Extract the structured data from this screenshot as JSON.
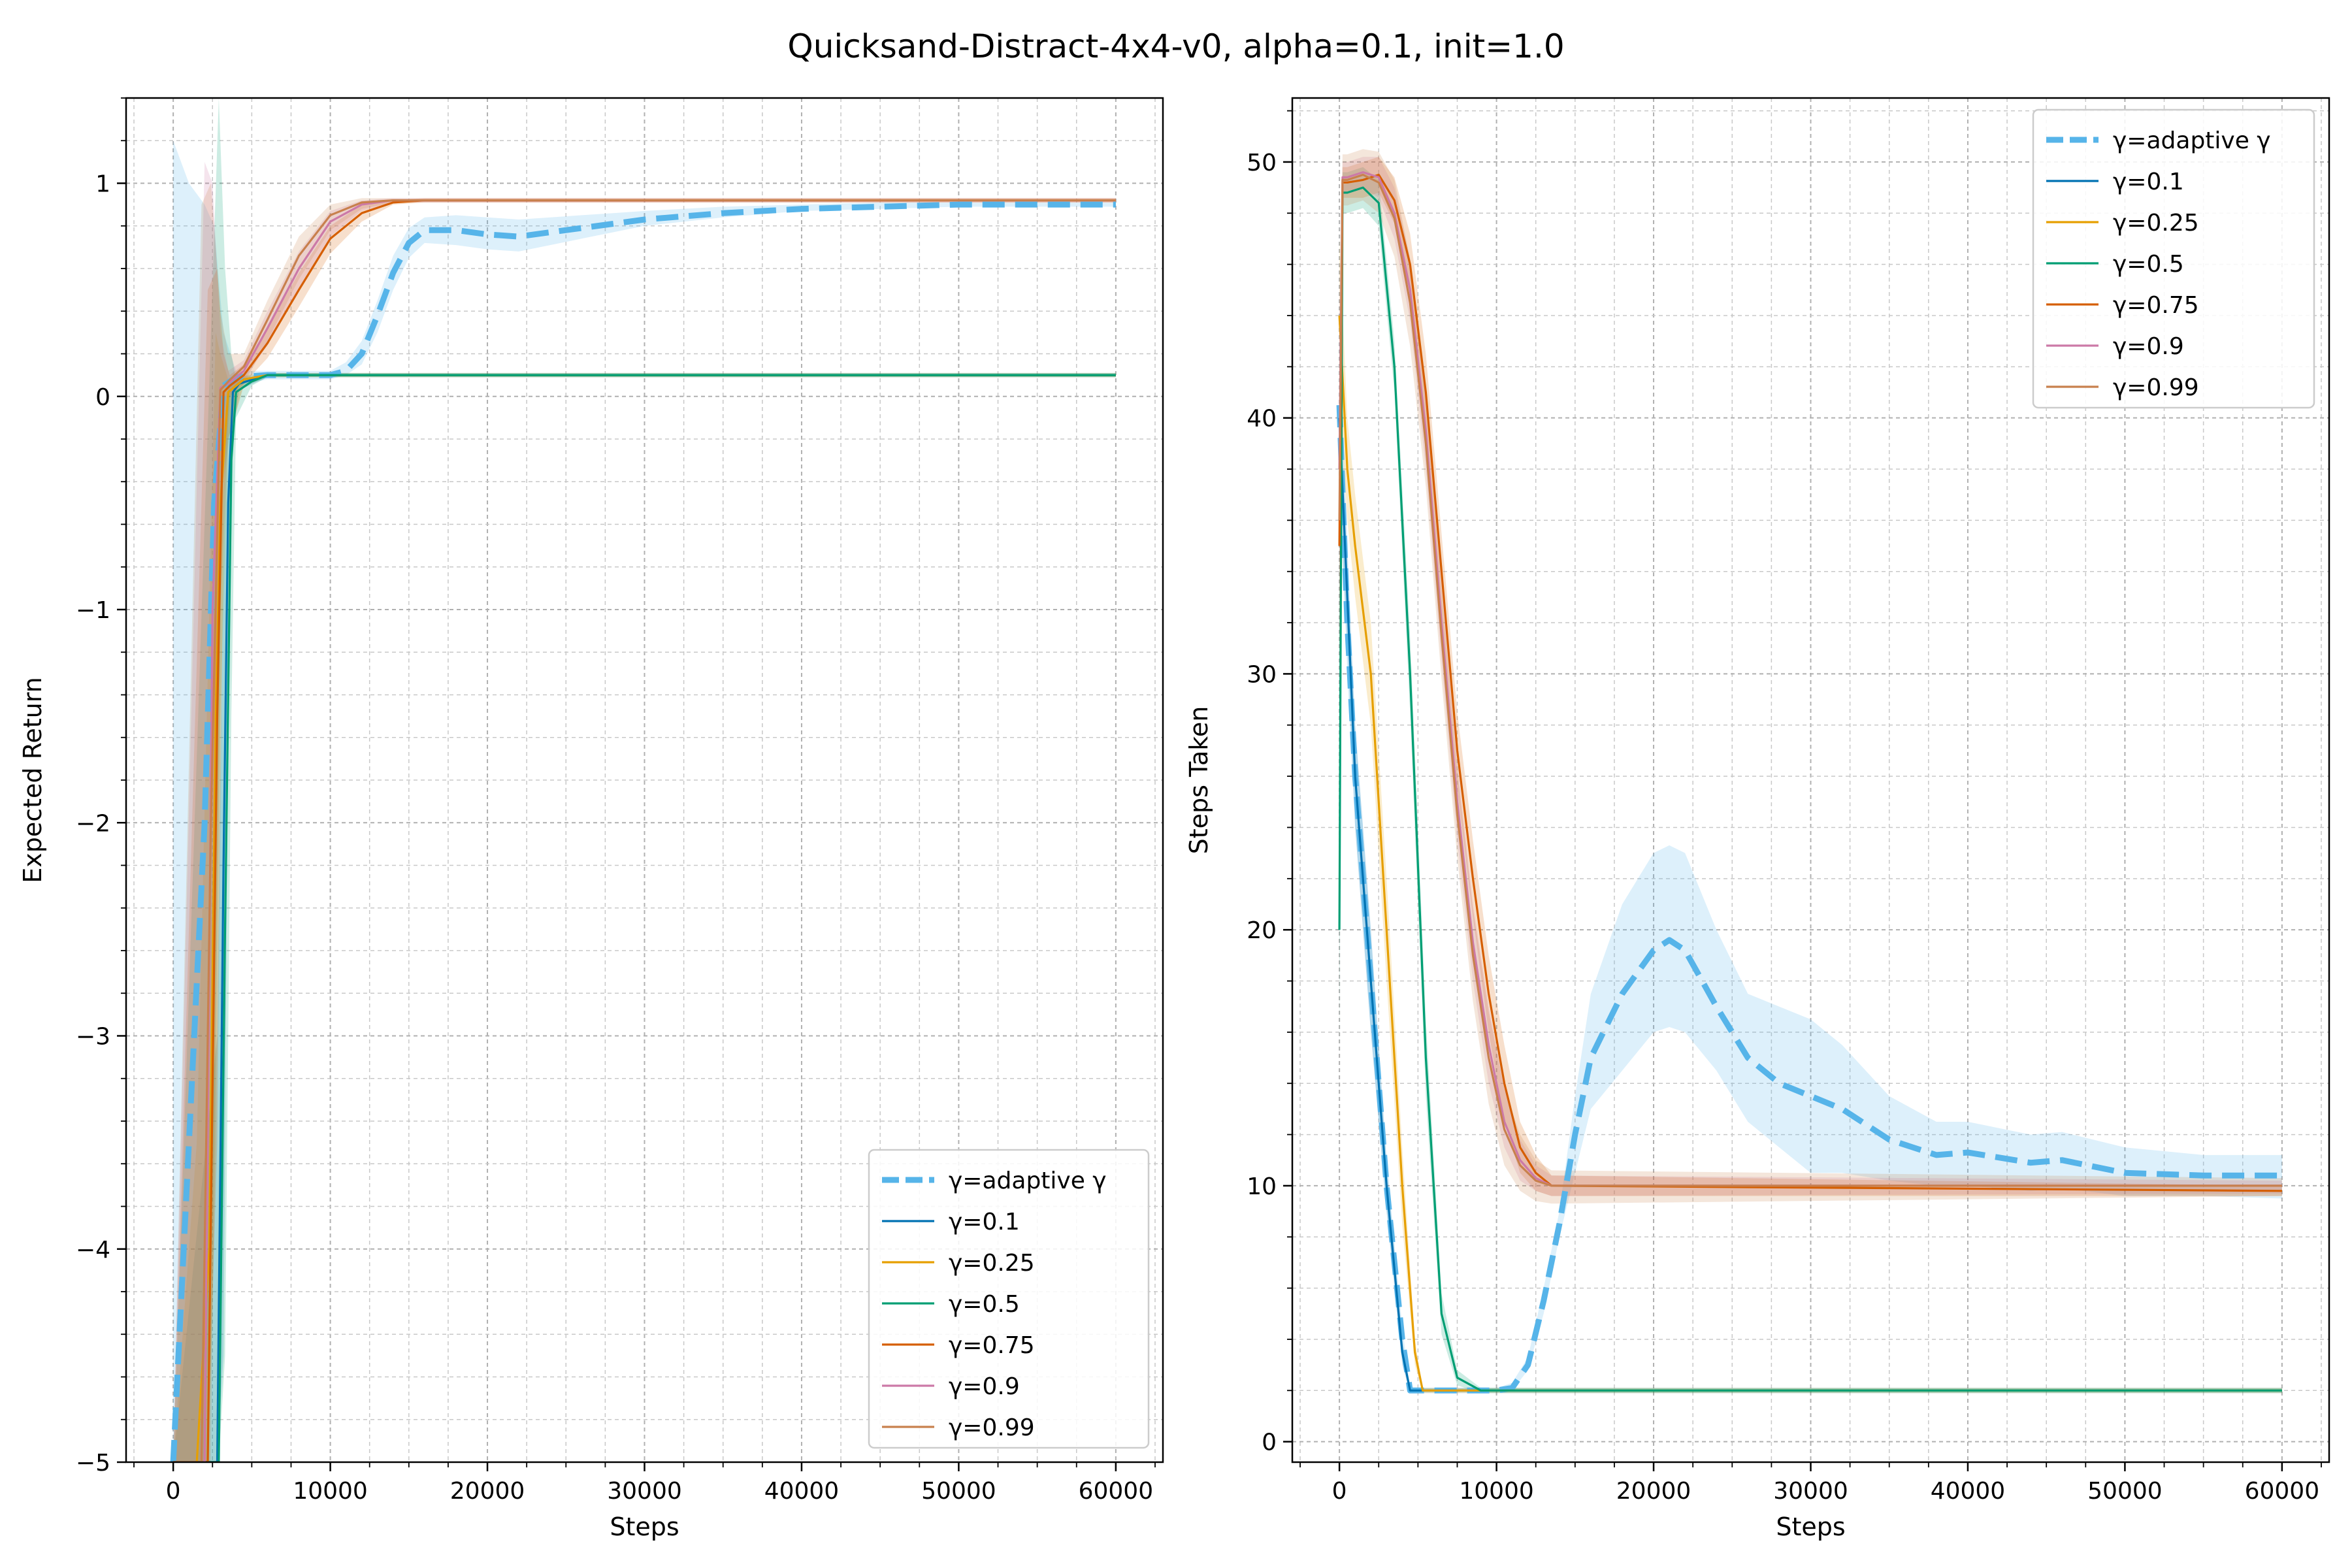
{
  "figure_title": "Quicksand-Distract-4x4-v0, alpha=0.1, init=1.0",
  "colors": {
    "adaptive": "#56b4e9",
    "g01": "#0072b2",
    "g025": "#e69f00",
    "g05": "#009e73",
    "g075": "#d55e00",
    "g09": "#cc79a7",
    "g099": "#c8804d"
  },
  "chart_data": [
    {
      "type": "line",
      "title": "",
      "xlabel": "Steps",
      "ylabel": "Expected Return",
      "xlim": [
        -3000,
        63000
      ],
      "ylim": [
        -5,
        1.4
      ],
      "xticks": [
        0,
        10000,
        20000,
        30000,
        40000,
        50000,
        60000
      ],
      "xtick_labels": [
        "0",
        "10000",
        "20000",
        "30000",
        "40000",
        "50000",
        "60000"
      ],
      "yticks": [
        -5,
        -4,
        -3,
        -2,
        -1,
        0,
        1
      ],
      "ytick_labels": [
        "−5",
        "−4",
        "−3",
        "−2",
        "−1",
        "0",
        "1"
      ],
      "grid": true,
      "legend": "lower-right",
      "series": [
        {
          "name": "γ=adaptive γ",
          "color_key": "adaptive",
          "style": "dashed",
          "x": [
            0,
            1000,
            2000,
            2600,
            3200,
            4000,
            6000,
            8000,
            10000,
            11000,
            12000,
            13000,
            14000,
            15000,
            16000,
            18000,
            20000,
            22000,
            24000,
            26000,
            28000,
            30000,
            35000,
            40000,
            45000,
            50000,
            55000,
            60000
          ],
          "y": [
            -5,
            -3.5,
            -2.0,
            -0.5,
            0.05,
            0.09,
            0.1,
            0.1,
            0.1,
            0.12,
            0.2,
            0.38,
            0.58,
            0.72,
            0.78,
            0.78,
            0.76,
            0.75,
            0.77,
            0.79,
            0.81,
            0.83,
            0.86,
            0.88,
            0.89,
            0.9,
            0.9,
            0.9
          ],
          "band_lo": [
            -5,
            -5,
            -5,
            -3.5,
            -0.4,
            0.05,
            0.08,
            0.08,
            0.08,
            0.1,
            0.15,
            0.3,
            0.5,
            0.65,
            0.72,
            0.71,
            0.69,
            0.68,
            0.71,
            0.74,
            0.77,
            0.8,
            0.84,
            0.87,
            0.88,
            0.89,
            0.89,
            0.89
          ],
          "band_hi": [
            1.2,
            1.0,
            0.9,
            0.8,
            0.3,
            0.12,
            0.12,
            0.12,
            0.12,
            0.16,
            0.26,
            0.45,
            0.66,
            0.79,
            0.84,
            0.85,
            0.84,
            0.83,
            0.84,
            0.85,
            0.86,
            0.87,
            0.89,
            0.9,
            0.91,
            0.91,
            0.91,
            0.91
          ]
        },
        {
          "name": "γ=0.1",
          "color_key": "g01",
          "style": "solid",
          "x": [
            0,
            2800,
            3200,
            3500,
            3800,
            4200,
            6000,
            60000
          ],
          "y": [
            -5,
            -5,
            -2.2,
            -0.5,
            0.02,
            0.06,
            0.1,
            0.1
          ],
          "band_lo": [
            -5,
            -5,
            -4.5,
            -1.5,
            -0.2,
            0.03,
            0.09,
            0.09
          ],
          "band_hi": [
            -5,
            -3.0,
            -0.5,
            0.05,
            0.08,
            0.09,
            0.11,
            0.11
          ]
        },
        {
          "name": "γ=0.25",
          "color_key": "g025",
          "style": "solid",
          "x": [
            0,
            1500,
            2300,
            2700,
            3000,
            3500,
            4500,
            6000,
            60000
          ],
          "y": [
            -5,
            -5,
            -4.0,
            -1.5,
            -0.5,
            0.02,
            0.08,
            0.1,
            0.1
          ],
          "band_lo": [
            -5,
            -5,
            -5,
            -3.5,
            -1.5,
            -0.2,
            0.05,
            0.09,
            0.09
          ],
          "band_hi": [
            -5,
            -3.5,
            -1.0,
            0.3,
            0.2,
            0.08,
            0.1,
            0.11,
            0.11
          ]
        },
        {
          "name": "γ=0.5",
          "color_key": "g05",
          "style": "solid",
          "x": [
            0,
            2900,
            3300,
            3700,
            4000,
            5000,
            6000,
            60000
          ],
          "y": [
            -5,
            -5,
            -2.5,
            -0.3,
            0.02,
            0.07,
            0.1,
            0.1
          ],
          "band_lo": [
            -5,
            -5,
            -4.5,
            -1.5,
            -0.1,
            0.05,
            0.09,
            0.09
          ],
          "band_hi": [
            -5,
            1.4,
            0.6,
            0.2,
            0.08,
            0.09,
            0.11,
            0.11
          ]
        },
        {
          "name": "γ=0.75",
          "color_key": "g075",
          "style": "solid",
          "x": [
            0,
            2200,
            2800,
            3200,
            3600,
            4500,
            6000,
            8000,
            10000,
            12000,
            14000,
            16000,
            60000
          ],
          "y": [
            -5,
            -5,
            -1.5,
            0.02,
            0.05,
            0.1,
            0.25,
            0.5,
            0.74,
            0.86,
            0.91,
            0.92,
            0.92
          ],
          "band_lo": [
            -5,
            -5,
            -3.5,
            -0.5,
            0.0,
            0.06,
            0.18,
            0.42,
            0.67,
            0.82,
            0.9,
            0.91,
            0.91
          ],
          "band_hi": [
            -5,
            0.5,
            0.6,
            0.2,
            0.1,
            0.15,
            0.32,
            0.58,
            0.8,
            0.9,
            0.92,
            0.93,
            0.93
          ]
        },
        {
          "name": "γ=0.9",
          "color_key": "g09",
          "style": "solid",
          "x": [
            0,
            2000,
            2500,
            3000,
            3500,
            4500,
            6000,
            8000,
            10000,
            12000,
            14000,
            60000
          ],
          "y": [
            -5,
            -5,
            -1.0,
            0.04,
            0.06,
            0.12,
            0.32,
            0.6,
            0.82,
            0.9,
            0.92,
            0.92
          ],
          "band_lo": [
            -5,
            -5,
            -3.0,
            -0.4,
            0.0,
            0.08,
            0.24,
            0.5,
            0.75,
            0.87,
            0.91,
            0.91
          ],
          "band_hi": [
            -5,
            1.1,
            1.0,
            0.3,
            0.12,
            0.17,
            0.4,
            0.68,
            0.87,
            0.92,
            0.93,
            0.93
          ]
        },
        {
          "name": "γ=0.99",
          "color_key": "g099",
          "style": "solid",
          "x": [
            0,
            1800,
            2400,
            3000,
            3500,
            4500,
            6000,
            8000,
            10000,
            12000,
            14000,
            60000
          ],
          "y": [
            -5,
            -5,
            -2.0,
            0.03,
            0.07,
            0.14,
            0.36,
            0.66,
            0.85,
            0.91,
            0.92,
            0.92
          ],
          "band_lo": [
            -5,
            -5,
            -5,
            -1.0,
            -0.2,
            0.06,
            0.26,
            0.55,
            0.78,
            0.88,
            0.91,
            0.91
          ],
          "band_hi": [
            -5,
            0.9,
            1.0,
            0.4,
            0.2,
            0.2,
            0.45,
            0.75,
            0.9,
            0.93,
            0.93,
            0.93
          ]
        }
      ]
    },
    {
      "type": "line",
      "title": "",
      "xlabel": "Steps",
      "ylabel": "Steps Taken",
      "xlim": [
        -3000,
        63000
      ],
      "ylim": [
        -0.8,
        52.5
      ],
      "xticks": [
        0,
        10000,
        20000,
        30000,
        40000,
        50000,
        60000
      ],
      "xtick_labels": [
        "0",
        "10000",
        "20000",
        "30000",
        "40000",
        "50000",
        "60000"
      ],
      "yticks": [
        0,
        10,
        20,
        30,
        40,
        50
      ],
      "ytick_labels": [
        "0",
        "10",
        "20",
        "30",
        "40",
        "50"
      ],
      "grid": true,
      "legend": "top-right",
      "series": [
        {
          "name": "γ=adaptive γ",
          "color_key": "adaptive",
          "style": "dashed",
          "x": [
            0,
            500,
            1000,
            1500,
            2000,
            3000,
            4000,
            4500,
            6000,
            8000,
            10000,
            11000,
            12000,
            13000,
            14000,
            15000,
            16000,
            18000,
            20000,
            21000,
            22000,
            24000,
            26000,
            28000,
            30000,
            32000,
            35000,
            38000,
            40000,
            44000,
            46000,
            50000,
            55000,
            60000
          ],
          "y": [
            40.5,
            32,
            26,
            22,
            18,
            10,
            4,
            2,
            2,
            2,
            2,
            2.1,
            3,
            5.5,
            8.5,
            12,
            15,
            17.5,
            19.2,
            19.6,
            19.2,
            17,
            15,
            14,
            13.5,
            13,
            11.8,
            11.2,
            11.3,
            10.9,
            11,
            10.5,
            10.4,
            10.4
          ],
          "band_lo": [
            38,
            30,
            24,
            20,
            16,
            9,
            3.5,
            2,
            2,
            2,
            2,
            2.0,
            2.8,
            5,
            8,
            10.5,
            13,
            14.5,
            16,
            16.2,
            16,
            14.5,
            12.5,
            11.5,
            10.5,
            10.5,
            10.2,
            10.0,
            10.0,
            9.8,
            9.9,
            9.6,
            9.6,
            9.5
          ],
          "band_hi": [
            42,
            34,
            28,
            24,
            20,
            11,
            4.5,
            2.1,
            2.1,
            2.1,
            2.1,
            2.3,
            3.3,
            6,
            9,
            13.5,
            17.5,
            21,
            23,
            23.3,
            23,
            20,
            17.5,
            17,
            16.5,
            15.5,
            13.5,
            12.5,
            12.5,
            12,
            12.1,
            11.5,
            11.2,
            11.2
          ]
        },
        {
          "name": "γ=0.1",
          "color_key": "g01",
          "style": "solid",
          "x": [
            0,
            500,
            1000,
            1500,
            2000,
            3000,
            4000,
            4500,
            5000,
            60000
          ],
          "y": [
            40,
            33,
            26,
            22,
            18,
            10,
            3.5,
            2,
            2,
            2
          ],
          "band_lo": [
            37,
            31,
            24,
            20,
            16,
            9,
            3,
            1.9,
            1.9,
            1.9
          ],
          "band_hi": [
            43,
            35,
            28,
            24,
            20,
            11,
            4,
            2.1,
            2.1,
            2.1
          ]
        },
        {
          "name": "γ=0.25",
          "color_key": "g025",
          "style": "solid",
          "x": [
            0,
            500,
            1000,
            2000,
            3000,
            4000,
            4800,
            5300,
            6000,
            60000
          ],
          "y": [
            44,
            38,
            35,
            30,
            20,
            10,
            3.5,
            2,
            2,
            2
          ],
          "band_lo": [
            41,
            36,
            33,
            28,
            18,
            8.5,
            3,
            1.9,
            1.9,
            1.9
          ],
          "band_hi": [
            47,
            40,
            37,
            32,
            22,
            11.5,
            4,
            2.1,
            2.1,
            2.1
          ]
        },
        {
          "name": "γ=0.5",
          "color_key": "g05",
          "style": "solid",
          "x": [
            0,
            200,
            500,
            1500,
            2500,
            3500,
            4500,
            5500,
            6500,
            7500,
            9000,
            60000
          ],
          "y": [
            20,
            48.8,
            48.8,
            49,
            48.4,
            42,
            30,
            15,
            5,
            2.5,
            2,
            2
          ],
          "band_lo": [
            15,
            48,
            48,
            48.2,
            47.5,
            41,
            28.5,
            13.5,
            4.2,
            2.2,
            1.9,
            1.9
          ],
          "band_hi": [
            25,
            49.6,
            49.6,
            49.8,
            49.3,
            43,
            31.5,
            16.5,
            5.8,
            2.8,
            2.1,
            2.1
          ]
        },
        {
          "name": "γ=0.75",
          "color_key": "g075",
          "style": "solid",
          "x": [
            0,
            200,
            500,
            1500,
            2500,
            3500,
            4500,
            5500,
            6500,
            7500,
            8500,
            9500,
            10500,
            11500,
            12500,
            13500,
            60000
          ],
          "y": [
            35,
            49.2,
            49.2,
            49.3,
            49.5,
            48.5,
            46,
            41,
            34,
            27,
            22,
            17.5,
            14,
            11.5,
            10.5,
            10,
            9.8
          ],
          "band_lo": [
            30,
            48.6,
            48.6,
            48.6,
            48.8,
            47.6,
            44.8,
            39.5,
            32.5,
            25.5,
            20.5,
            16,
            12.5,
            10.5,
            9.8,
            9.6,
            9.6
          ],
          "band_hi": [
            40,
            49.8,
            49.8,
            50,
            50.2,
            49.4,
            47.2,
            42.5,
            35.5,
            28.5,
            23.5,
            19,
            15.5,
            12.5,
            11.2,
            10.4,
            10.0
          ]
        },
        {
          "name": "γ=0.9",
          "color_key": "g09",
          "style": "solid",
          "x": [
            0,
            200,
            500,
            1500,
            2500,
            3500,
            4500,
            5500,
            6500,
            7500,
            8500,
            9500,
            10500,
            11500,
            12500,
            13500,
            60000
          ],
          "y": [
            38,
            49.4,
            49.4,
            49.6,
            49.4,
            48,
            45,
            39.5,
            32,
            25,
            19.5,
            15.5,
            12.5,
            11,
            10.3,
            10,
            10
          ],
          "band_lo": [
            32,
            48.8,
            48.8,
            49,
            48.6,
            47,
            43.8,
            38,
            30.5,
            23.5,
            18,
            14,
            11.5,
            10.2,
            9.8,
            9.6,
            9.7
          ],
          "band_hi": [
            44,
            50,
            50,
            50.2,
            50.2,
            49,
            46.2,
            41,
            33.5,
            26.5,
            21,
            17,
            13.8,
            11.8,
            10.8,
            10.4,
            10.2
          ]
        },
        {
          "name": "γ=0.99",
          "color_key": "g099",
          "style": "solid",
          "x": [
            0,
            200,
            500,
            1500,
            2500,
            3500,
            4500,
            5500,
            6500,
            7500,
            8500,
            9500,
            10500,
            11500,
            12500,
            13500,
            60000
          ],
          "y": [
            36,
            49.3,
            49.3,
            49.5,
            49.2,
            47.8,
            44.5,
            39,
            31.5,
            24.5,
            19,
            15,
            12.2,
            10.8,
            10.2,
            10,
            10
          ],
          "band_lo": [
            30,
            48.3,
            48.3,
            48.5,
            48.0,
            46.3,
            42.8,
            37.3,
            29.8,
            22.8,
            17.2,
            13.2,
            10.8,
            9.8,
            9.4,
            9.3,
            9.6
          ],
          "band_hi": [
            42,
            50.3,
            50.3,
            50.5,
            50.4,
            49.3,
            46.2,
            40.7,
            33.2,
            26.2,
            20.8,
            16.8,
            13.8,
            12,
            11,
            10.6,
            10.3
          ]
        }
      ]
    }
  ]
}
